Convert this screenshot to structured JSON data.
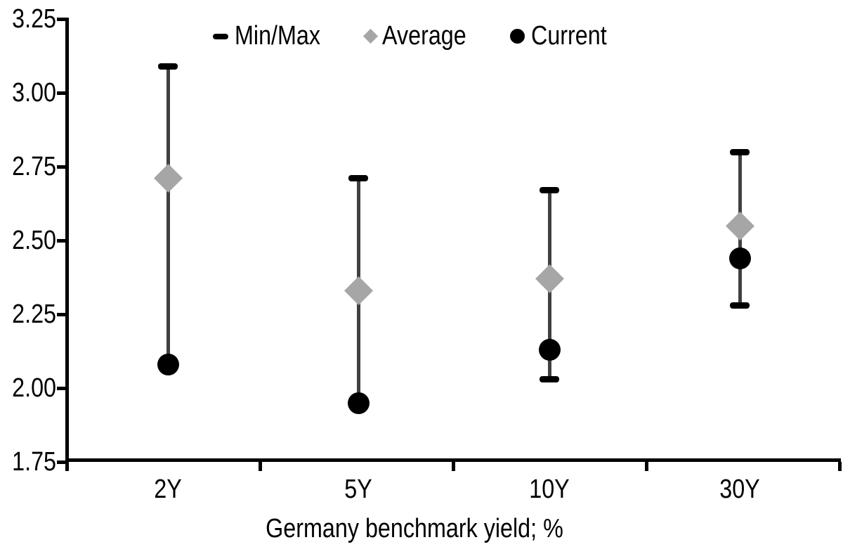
{
  "chart_data": {
    "type": "scatter",
    "subtype": "min-max-range-with-average-and-current-markers",
    "title": "",
    "xlabel": "Germany benchmark yield; %",
    "ylabel": "",
    "categories": [
      "2Y",
      "5Y",
      "10Y",
      "30Y"
    ],
    "series": [
      {
        "name": "Min/Max",
        "marker": "dash-cap",
        "min": [
          2.08,
          1.95,
          2.03,
          2.28
        ],
        "max": [
          3.09,
          2.71,
          2.67,
          2.8
        ],
        "note": "min cap hidden behind Current dot for 2Y and 5Y (min = current)"
      },
      {
        "name": "Average",
        "marker": "diamond",
        "values": [
          2.71,
          2.33,
          2.37,
          2.55
        ]
      },
      {
        "name": "Current",
        "marker": "circle",
        "values": [
          2.08,
          1.95,
          2.13,
          2.44
        ]
      }
    ],
    "ylim": [
      1.75,
      3.25
    ],
    "ytick_labels": [
      "3.25",
      "3.00",
      "2.75",
      "2.50",
      "2.25",
      "2.00",
      "1.75"
    ],
    "legend_position": "top-center",
    "grid": false,
    "colors": {
      "minmax": "#000000",
      "average": "#a6a6a6",
      "current": "#000000",
      "whisker": "#404040",
      "axis": "#000000",
      "text": "#000000",
      "background": "#ffffff"
    }
  }
}
